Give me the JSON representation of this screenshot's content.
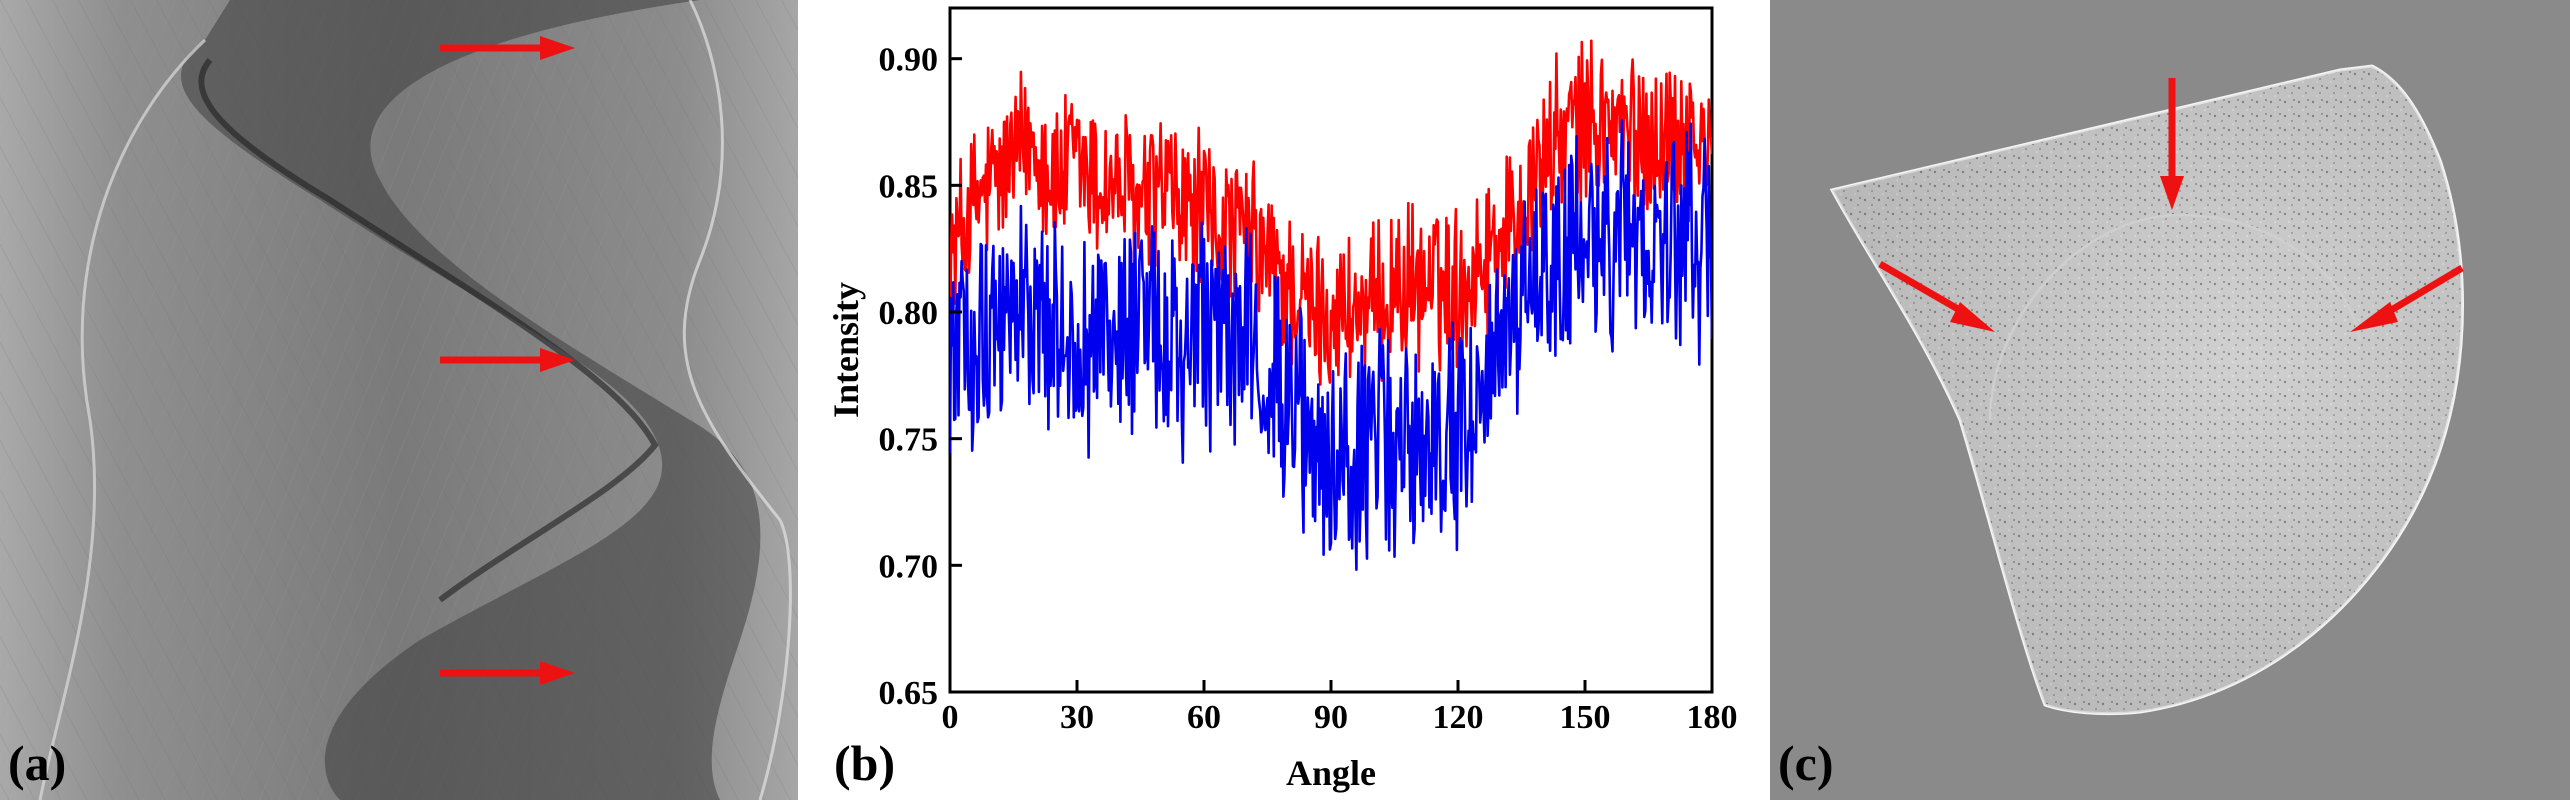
{
  "panels": {
    "a": {
      "label": "(a)"
    },
    "b": {
      "label": "(b)"
    },
    "c": {
      "label": "(c)"
    }
  },
  "colors": {
    "arrow": "#ee1111",
    "series_red": "#ff0000",
    "series_blue": "#0000ee",
    "sinogram_background": "#8c8c8c",
    "slice_background": "#8a8a8a"
  },
  "annotations": {
    "sinogram_arrows": 3,
    "slice_arrows": 3
  },
  "chart_data": {
    "type": "line",
    "title": "",
    "xlabel": "Angle",
    "ylabel": "Intensity",
    "xlim": [
      0,
      180
    ],
    "ylim": [
      0.65,
      0.92
    ],
    "xticks": [
      0,
      30,
      60,
      90,
      120,
      150,
      180
    ],
    "yticks": [
      0.65,
      0.7,
      0.75,
      0.8,
      0.85,
      0.9
    ],
    "ytick_labels": [
      "0.65",
      "0.70",
      "0.75",
      "0.80",
      "0.85",
      "0.90"
    ],
    "grid": false,
    "legend": "none",
    "series": [
      {
        "color": "#ff0000",
        "x": [
          0,
          5,
          10,
          15,
          20,
          25,
          30,
          35,
          40,
          45,
          50,
          55,
          60,
          65,
          70,
          75,
          80,
          85,
          90,
          95,
          100,
          105,
          110,
          115,
          120,
          125,
          130,
          135,
          140,
          145,
          150,
          155,
          160,
          165,
          170,
          175,
          180
        ],
        "values": [
          0.82,
          0.84,
          0.85,
          0.86,
          0.87,
          0.85,
          0.86,
          0.85,
          0.85,
          0.84,
          0.85,
          0.84,
          0.84,
          0.83,
          0.83,
          0.82,
          0.81,
          0.8,
          0.8,
          0.8,
          0.8,
          0.81,
          0.81,
          0.81,
          0.81,
          0.82,
          0.83,
          0.84,
          0.86,
          0.87,
          0.875,
          0.875,
          0.87,
          0.87,
          0.87,
          0.87,
          0.86
        ]
      },
      {
        "color": "#0000ee",
        "x": [
          0,
          5,
          10,
          15,
          20,
          25,
          30,
          35,
          40,
          45,
          50,
          55,
          60,
          65,
          70,
          75,
          80,
          85,
          90,
          95,
          100,
          105,
          110,
          115,
          120,
          125,
          130,
          135,
          140,
          145,
          150,
          155,
          160,
          165,
          170,
          175,
          180
        ],
        "values": [
          0.78,
          0.79,
          0.8,
          0.8,
          0.8,
          0.79,
          0.79,
          0.79,
          0.79,
          0.79,
          0.79,
          0.78,
          0.79,
          0.79,
          0.79,
          0.78,
          0.76,
          0.75,
          0.74,
          0.74,
          0.75,
          0.75,
          0.75,
          0.75,
          0.75,
          0.77,
          0.79,
          0.8,
          0.81,
          0.82,
          0.83,
          0.83,
          0.83,
          0.83,
          0.83,
          0.83,
          0.82
        ]
      }
    ]
  }
}
